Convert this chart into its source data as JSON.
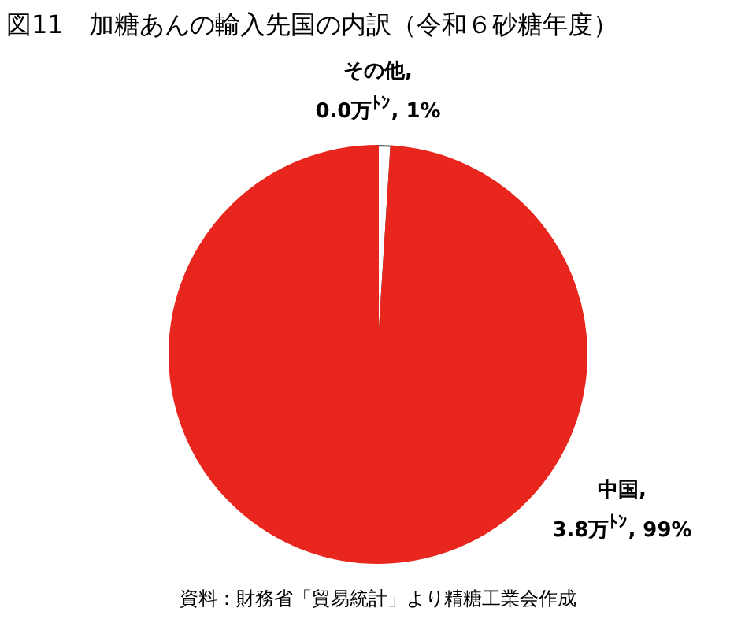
{
  "chart_data": {
    "type": "pie",
    "title": "図11　加糖あんの輸入先国の内訳（令和６砂糖年度）",
    "categories": [
      "その他",
      "中国"
    ],
    "values": [
      1,
      99
    ],
    "colors": [
      "#ffffff",
      "#e8261e"
    ],
    "value_labels": [
      ",\n0.0万$^{ﾄﾝ}$, 1%",
      ",\n3.8万$^{ﾄﾝ}$, 99%"
    ],
    "annotations": [
      "資料：財務省「貿易統計」より精糖工業会作成"
    ],
    "legend": false
  }
}
